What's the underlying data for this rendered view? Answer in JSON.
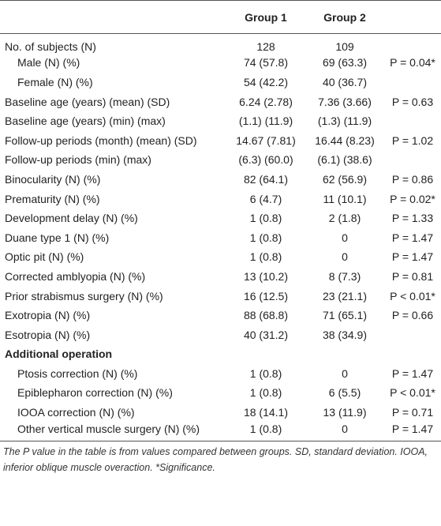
{
  "table": {
    "header": [
      "Group 1",
      "Group 2"
    ],
    "rows": [
      {
        "label": "No. of subjects (N)",
        "group1": "128",
        "group2": "109"
      },
      {
        "label": "Male (N) (%)",
        "group1": "74 (57.8)",
        "group2": "69 (63.3)",
        "p": "P = 0.04*"
      },
      {
        "label": "Female (N) (%)",
        "group1": "54 (42.2)",
        "group2": "40 (36.7)"
      },
      {
        "label": "Baseline age (years) (mean) (SD)",
        "group1": "6.24 (2.78)",
        "group2": "7.36 (3.66)",
        "p": "P = 0.63"
      },
      {
        "label": "Baseline age (years) (min) (max)",
        "group1": "(1.1) (11.9)",
        "group2": "(1.3) (11.9)"
      },
      {
        "label": "Follow-up periods (month) (mean) (SD)",
        "group1": "14.67 (7.81)",
        "group2": "16.44 (8.23)",
        "p": "P = 1.02"
      },
      {
        "label": "Follow-up periods (min) (max)",
        "group1": "(6.3) (60.0)",
        "group2": "(6.1) (38.6)"
      },
      {
        "label": "Binocularity (N) (%)",
        "group1": "82 (64.1)",
        "group2": "62 (56.9)",
        "p": "P = 0.86"
      },
      {
        "label": "Prematurity (N) (%)",
        "group1": "6 (4.7)",
        "group2": "11 (10.1)",
        "p": "P = 0.02*"
      },
      {
        "label": "Development delay (N) (%)",
        "group1": "1 (0.8)",
        "group2": "2 (1.8)",
        "p": "P = 1.33"
      },
      {
        "label": "Duane type 1 (N) (%)",
        "group1": "1 (0.8)",
        "group2": "0",
        "p": "P = 1.47"
      },
      {
        "label": "Optic pit (N) (%)",
        "group1": "1 (0.8)",
        "group2": "0",
        "p": "P = 1.47"
      },
      {
        "label": "Corrected amblyopia (N) (%)",
        "group1": "13 (10.2)",
        "group2": "8 (7.3)",
        "p": "P = 0.81"
      },
      {
        "label": "Prior strabismus surgery (N) (%)",
        "group1": "16 (12.5)",
        "group2": "23 (21.1)",
        "p": "P < 0.01*"
      },
      {
        "label": "Exotropia (N) (%)",
        "group1": "88 (68.8)",
        "group2": "71 (65.1)",
        "p": "P = 0.66"
      },
      {
        "label": "Esotropia (N) (%)",
        "group1": "40 (31.2)",
        "group2": "38 (34.9)"
      }
    ],
    "section_title": "Additional operation",
    "section_rows": [
      {
        "label": "Ptosis correction (N) (%)",
        "group1": "1 (0.8)",
        "group2": "0",
        "p": "P = 1.47"
      },
      {
        "label": "Epiblepharon correction (N) (%)",
        "group1": "1 (0.8)",
        "group2": "6 (5.5)",
        "p": "P < 0.01*"
      },
      {
        "label": "IOOA correction (N) (%)",
        "group1": "18 (14.1)",
        "group2": "13 (11.9)",
        "p": "P = 0.71"
      },
      {
        "label": "Other vertical muscle surgery (N) (%)",
        "group1": "1 (0.8)",
        "group2": "0",
        "p": "P = 1.47"
      }
    ]
  },
  "footnote": "The P value in the table is from values compared between groups. SD, standard deviation. IOOA, inferior oblique muscle overaction. *Significance."
}
